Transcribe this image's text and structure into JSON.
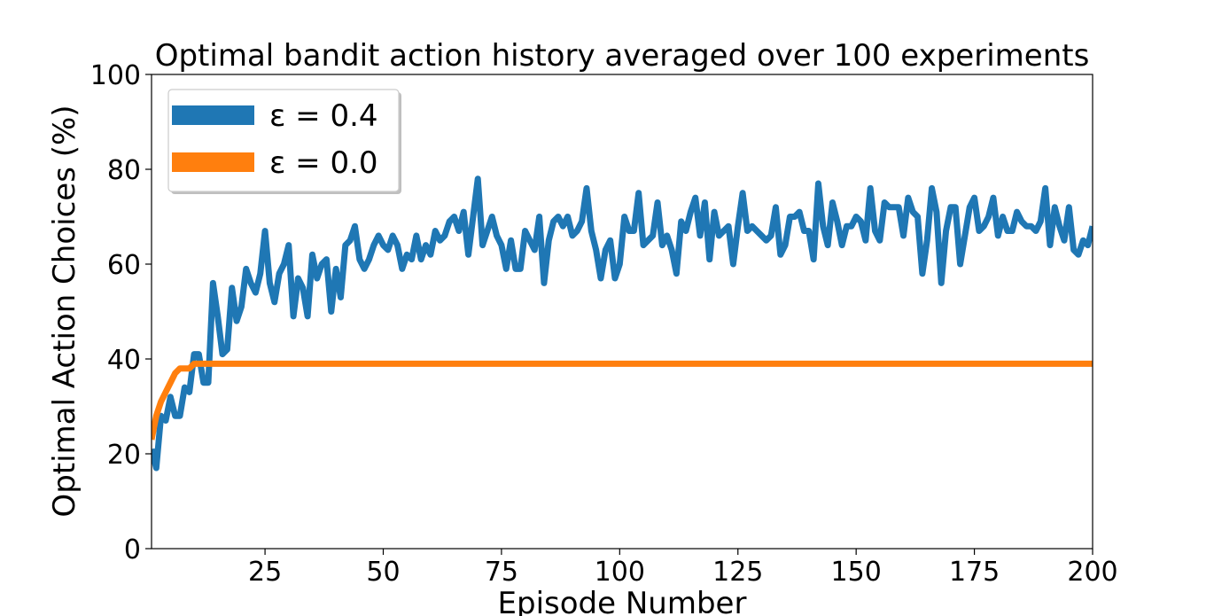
{
  "chart_data": {
    "type": "line",
    "title": "Optimal bandit action history averaged over 100 experiments",
    "xlabel": "Episode Number",
    "ylabel": "Optimal Action Choices (%)",
    "xlim": [
      1,
      200
    ],
    "ylim": [
      0,
      100
    ],
    "xticks": [
      25,
      50,
      75,
      100,
      125,
      150,
      175,
      200
    ],
    "yticks": [
      0,
      20,
      40,
      60,
      80,
      100
    ],
    "grid": false,
    "legend_position": "top-left",
    "series": [
      {
        "name": "ε = 0.4",
        "color": "#1f77b4",
        "x": [
          1,
          2,
          3,
          4,
          5,
          6,
          7,
          8,
          9,
          10,
          11,
          12,
          13,
          14,
          15,
          16,
          17,
          18,
          19,
          20,
          21,
          22,
          23,
          24,
          25,
          26,
          27,
          28,
          29,
          30,
          31,
          32,
          33,
          34,
          35,
          36,
          37,
          38,
          39,
          40,
          41,
          42,
          43,
          44,
          45,
          46,
          47,
          48,
          49,
          50,
          51,
          52,
          53,
          54,
          55,
          56,
          57,
          58,
          59,
          60,
          61,
          62,
          63,
          64,
          65,
          66,
          67,
          68,
          69,
          70,
          71,
          72,
          73,
          74,
          75,
          76,
          77,
          78,
          79,
          80,
          81,
          82,
          83,
          84,
          85,
          86,
          87,
          88,
          89,
          90,
          91,
          92,
          93,
          94,
          95,
          96,
          97,
          98,
          99,
          100,
          101,
          102,
          103,
          104,
          105,
          106,
          107,
          108,
          109,
          110,
          111,
          112,
          113,
          114,
          115,
          116,
          117,
          118,
          119,
          120,
          121,
          122,
          123,
          124,
          125,
          126,
          127,
          128,
          129,
          130,
          131,
          132,
          133,
          134,
          135,
          136,
          137,
          138,
          139,
          140,
          141,
          142,
          143,
          144,
          145,
          146,
          147,
          148,
          149,
          150,
          151,
          152,
          153,
          154,
          155,
          156,
          157,
          158,
          159,
          160,
          161,
          162,
          163,
          164,
          165,
          166,
          167,
          168,
          169,
          170,
          171,
          172,
          173,
          174,
          175,
          176,
          177,
          178,
          179,
          180,
          181,
          182,
          183,
          184,
          185,
          186,
          187,
          188,
          189,
          190,
          191,
          192,
          193,
          194,
          195,
          196,
          197,
          198,
          199,
          200
        ],
        "values": [
          21,
          17,
          28,
          27,
          32,
          28,
          28,
          34,
          33,
          41,
          41,
          35,
          35,
          56,
          49,
          41,
          42,
          55,
          48,
          51,
          59,
          56,
          54,
          58,
          67,
          56,
          52,
          58,
          60,
          64,
          49,
          57,
          55,
          49,
          62,
          57,
          60,
          61,
          50,
          59,
          53,
          64,
          65,
          68,
          61,
          59,
          61,
          64,
          66,
          64,
          63,
          66,
          64,
          59,
          62,
          61,
          66,
          61,
          64,
          62,
          67,
          65,
          66,
          69,
          70,
          67,
          71,
          62,
          70,
          78,
          64,
          67,
          70,
          66,
          64,
          59,
          65,
          59,
          59,
          67,
          65,
          63,
          70,
          56,
          65,
          69,
          70,
          68,
          70,
          66,
          67,
          69,
          76,
          67,
          63,
          57,
          63,
          65,
          57,
          60,
          70,
          67,
          67,
          75,
          64,
          65,
          66,
          73,
          64,
          66,
          63,
          58,
          69,
          67,
          71,
          74,
          66,
          73,
          61,
          71,
          66,
          67,
          68,
          60,
          68,
          75,
          67,
          68,
          67,
          66,
          65,
          66,
          72,
          62,
          64,
          70,
          70,
          71,
          67,
          67,
          61,
          77,
          68,
          64,
          73,
          69,
          64,
          68,
          68,
          70,
          69,
          65,
          76,
          67,
          65,
          73,
          72,
          72,
          72,
          66,
          74,
          71,
          70,
          58,
          65,
          76,
          71,
          56,
          67,
          72,
          72,
          60,
          66,
          72,
          74,
          67,
          68,
          70,
          74,
          66,
          70,
          67,
          67,
          71,
          69,
          68,
          68,
          67,
          69,
          76,
          64,
          72,
          68,
          65,
          72,
          63,
          62,
          65,
          64,
          68
        ]
      },
      {
        "name": "ε = 0.0",
        "color": "#ff7f0e",
        "x": [
          1,
          2,
          3,
          4,
          5,
          6,
          7,
          8,
          9,
          10,
          11,
          12,
          13,
          14,
          15,
          16,
          17,
          18,
          19,
          20,
          21,
          22,
          23,
          24,
          25,
          26,
          27,
          28,
          29,
          30,
          31,
          32,
          33,
          34,
          35,
          36,
          37,
          38,
          39,
          40,
          41,
          42,
          43,
          44,
          45,
          46,
          47,
          48,
          49,
          50,
          51,
          52,
          53,
          54,
          55,
          56,
          57,
          58,
          59,
          60,
          61,
          62,
          63,
          64,
          65,
          66,
          67,
          68,
          69,
          70,
          71,
          72,
          73,
          74,
          75,
          76,
          77,
          78,
          79,
          80,
          81,
          82,
          83,
          84,
          85,
          86,
          87,
          88,
          89,
          90,
          91,
          92,
          93,
          94,
          95,
          96,
          97,
          98,
          99,
          100,
          101,
          102,
          103,
          104,
          105,
          106,
          107,
          108,
          109,
          110,
          111,
          112,
          113,
          114,
          115,
          116,
          117,
          118,
          119,
          120,
          121,
          122,
          123,
          124,
          125,
          126,
          127,
          128,
          129,
          130,
          131,
          132,
          133,
          134,
          135,
          136,
          137,
          138,
          139,
          140,
          141,
          142,
          143,
          144,
          145,
          146,
          147,
          148,
          149,
          150,
          151,
          152,
          153,
          154,
          155,
          156,
          157,
          158,
          159,
          160,
          161,
          162,
          163,
          164,
          165,
          166,
          167,
          168,
          169,
          170,
          171,
          172,
          173,
          174,
          175,
          176,
          177,
          178,
          179,
          180,
          181,
          182,
          183,
          184,
          185,
          186,
          187,
          188,
          189,
          190,
          191,
          192,
          193,
          194,
          195,
          196,
          197,
          198,
          199,
          200
        ],
        "values": [
          23,
          28,
          31,
          33,
          35,
          37,
          38,
          38,
          38,
          39,
          39,
          39,
          39,
          39,
          39,
          39,
          39,
          39,
          39,
          39,
          39,
          39,
          39,
          39,
          39,
          39,
          39,
          39,
          39,
          39,
          39,
          39,
          39,
          39,
          39,
          39,
          39,
          39,
          39,
          39,
          39,
          39,
          39,
          39,
          39,
          39,
          39,
          39,
          39,
          39,
          39,
          39,
          39,
          39,
          39,
          39,
          39,
          39,
          39,
          39,
          39,
          39,
          39,
          39,
          39,
          39,
          39,
          39,
          39,
          39,
          39,
          39,
          39,
          39,
          39,
          39,
          39,
          39,
          39,
          39,
          39,
          39,
          39,
          39,
          39,
          39,
          39,
          39,
          39,
          39,
          39,
          39,
          39,
          39,
          39,
          39,
          39,
          39,
          39,
          39,
          39,
          39,
          39,
          39,
          39,
          39,
          39,
          39,
          39,
          39,
          39,
          39,
          39,
          39,
          39,
          39,
          39,
          39,
          39,
          39,
          39,
          39,
          39,
          39,
          39,
          39,
          39,
          39,
          39,
          39,
          39,
          39,
          39,
          39,
          39,
          39,
          39,
          39,
          39,
          39,
          39,
          39,
          39,
          39,
          39,
          39,
          39,
          39,
          39,
          39,
          39,
          39,
          39,
          39,
          39,
          39,
          39,
          39,
          39,
          39,
          39,
          39,
          39,
          39,
          39,
          39,
          39,
          39,
          39,
          39,
          39,
          39,
          39,
          39,
          39,
          39,
          39,
          39,
          39,
          39,
          39,
          39,
          39,
          39,
          39,
          39,
          39,
          39,
          39,
          39,
          39,
          39,
          39,
          39,
          39,
          39,
          39,
          39,
          39,
          39
        ]
      }
    ]
  }
}
